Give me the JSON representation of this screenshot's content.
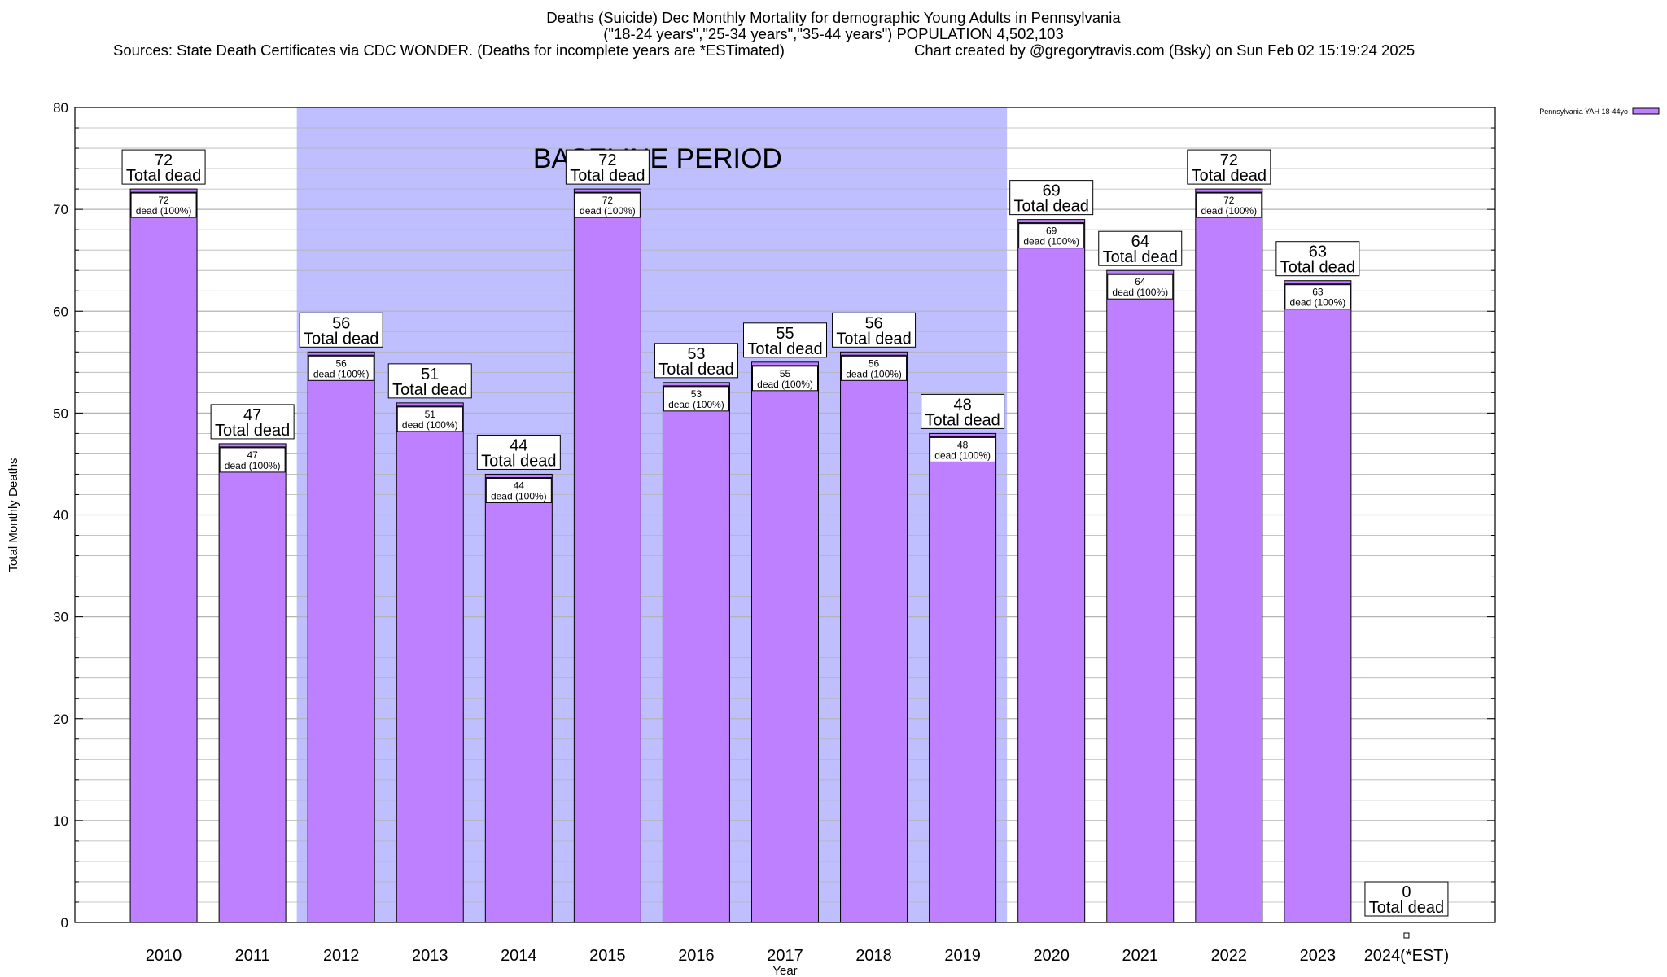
{
  "chart_data": {
    "type": "bar",
    "title_line1": "Deaths (Suicide) Dec Monthly Mortality for demographic Young Adults in Pennsylvania",
    "title_line2": "(\"18-24 years\",\"25-34 years\",\"35-44 years\") POPULATION 4,502,103",
    "sources": "Sources: State Death Certificates via CDC WONDER. (Deaths for incomplete years are *ESTimated)",
    "credit": "Chart created by @gregorytravis.com (Bsky) on Sun Feb 02 15:19:24 2025",
    "xlabel": "Year",
    "ylabel": "Total Monthly Deaths",
    "ylim": [
      0,
      80
    ],
    "yticks": [
      "0",
      "10",
      "20",
      "30",
      "40",
      "50",
      "60",
      "70",
      "80"
    ],
    "categories": [
      "2010",
      "2011",
      "2012",
      "2013",
      "2014",
      "2015",
      "2016",
      "2017",
      "2018",
      "2019",
      "2020",
      "2021",
      "2022",
      "2023",
      "2024(*EST)"
    ],
    "values": [
      72,
      47,
      56,
      51,
      44,
      72,
      53,
      55,
      56,
      48,
      69,
      64,
      72,
      63,
      0
    ],
    "total_label": "Total dead",
    "inner_label": "dead (100%)",
    "baseline": {
      "label": "BASELINE PERIOD",
      "from": "2012",
      "to": "2019"
    },
    "legend": {
      "label": "Pennsylvania YAH 18-44yo",
      "position": "top-right outside"
    },
    "colors": {
      "bar": "#bf80ff",
      "baseline": "#bfbfff",
      "grid": "#b4b4b4"
    },
    "grid": true
  }
}
